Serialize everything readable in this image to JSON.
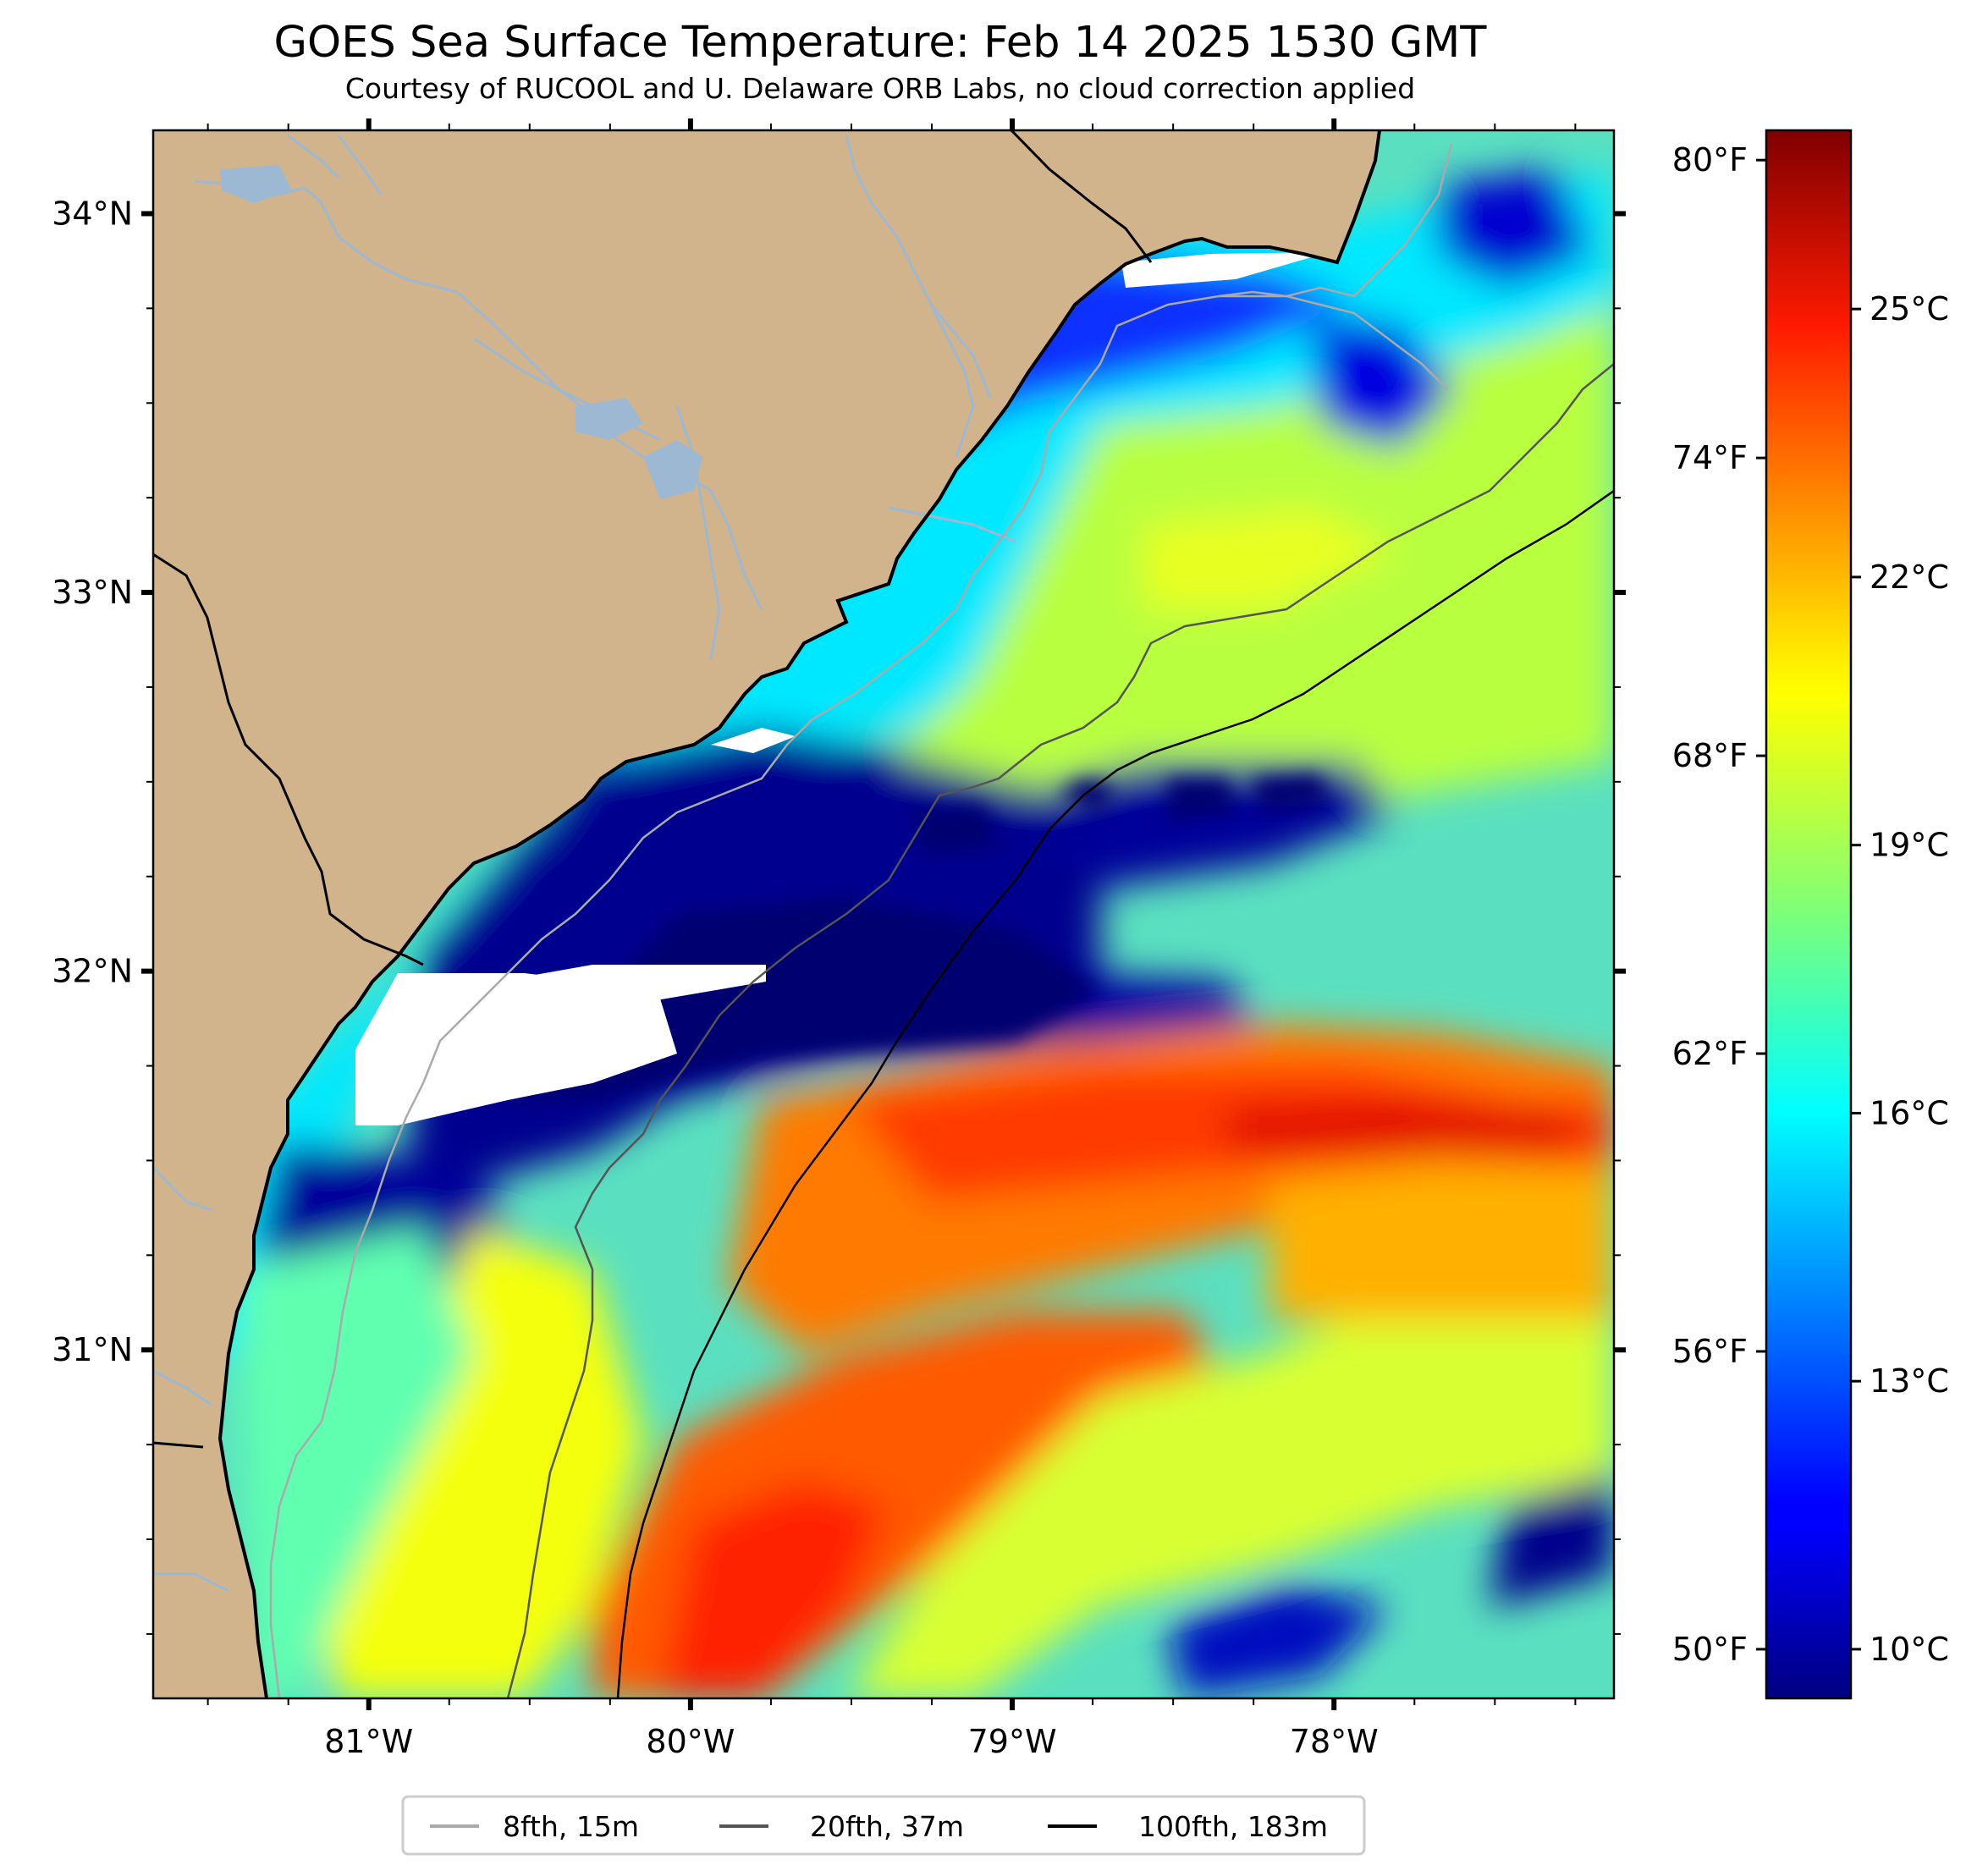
{
  "title": "GOES Sea Surface Temperature: Feb 14 2025 1530 GMT",
  "subtitle": "Courtesy of RUCOOL and U. Delaware ORB Labs, no cloud correction applied",
  "map": {
    "lon_range": [
      -81.67,
      -77.13
    ],
    "lat_range": [
      30.08,
      34.22
    ],
    "lon_ticks": [
      {
        "value": -81,
        "label": "81°W"
      },
      {
        "value": -80,
        "label": "80°W"
      },
      {
        "value": -79,
        "label": "79°W"
      },
      {
        "value": -78,
        "label": "78°W"
      }
    ],
    "lat_ticks": [
      {
        "value": 34,
        "label": "34°N"
      },
      {
        "value": 33,
        "label": "33°N"
      },
      {
        "value": 32,
        "label": "32°N"
      },
      {
        "value": 31,
        "label": "31°N"
      }
    ],
    "colors": {
      "land": "#d2b48c",
      "river": "#9db8d2",
      "coast": "#000000",
      "no_data": "#ffffff"
    }
  },
  "colorbar": {
    "colormap": "jet",
    "range_c": [
      9.45,
      27.0
    ],
    "celsius": [
      {
        "value": 10,
        "label": "10°C"
      },
      {
        "value": 13,
        "label": "13°C"
      },
      {
        "value": 16,
        "label": "16°C"
      },
      {
        "value": 19,
        "label": "19°C"
      },
      {
        "value": 22,
        "label": "22°C"
      },
      {
        "value": 25,
        "label": "25°C"
      }
    ],
    "fahrenheit": [
      {
        "value": 50,
        "label": "50°F"
      },
      {
        "value": 56,
        "label": "56°F"
      },
      {
        "value": 62,
        "label": "62°F"
      },
      {
        "value": 68,
        "label": "68°F"
      },
      {
        "value": 74,
        "label": "74°F"
      },
      {
        "value": 80,
        "label": "80°F"
      }
    ]
  },
  "legend": [
    {
      "label": "8fth, 15m",
      "color": "#aaaaaa"
    },
    {
      "label": "20fth, 37m",
      "color": "#555555"
    },
    {
      "label": "100fth, 183m",
      "color": "#000000"
    }
  ]
}
